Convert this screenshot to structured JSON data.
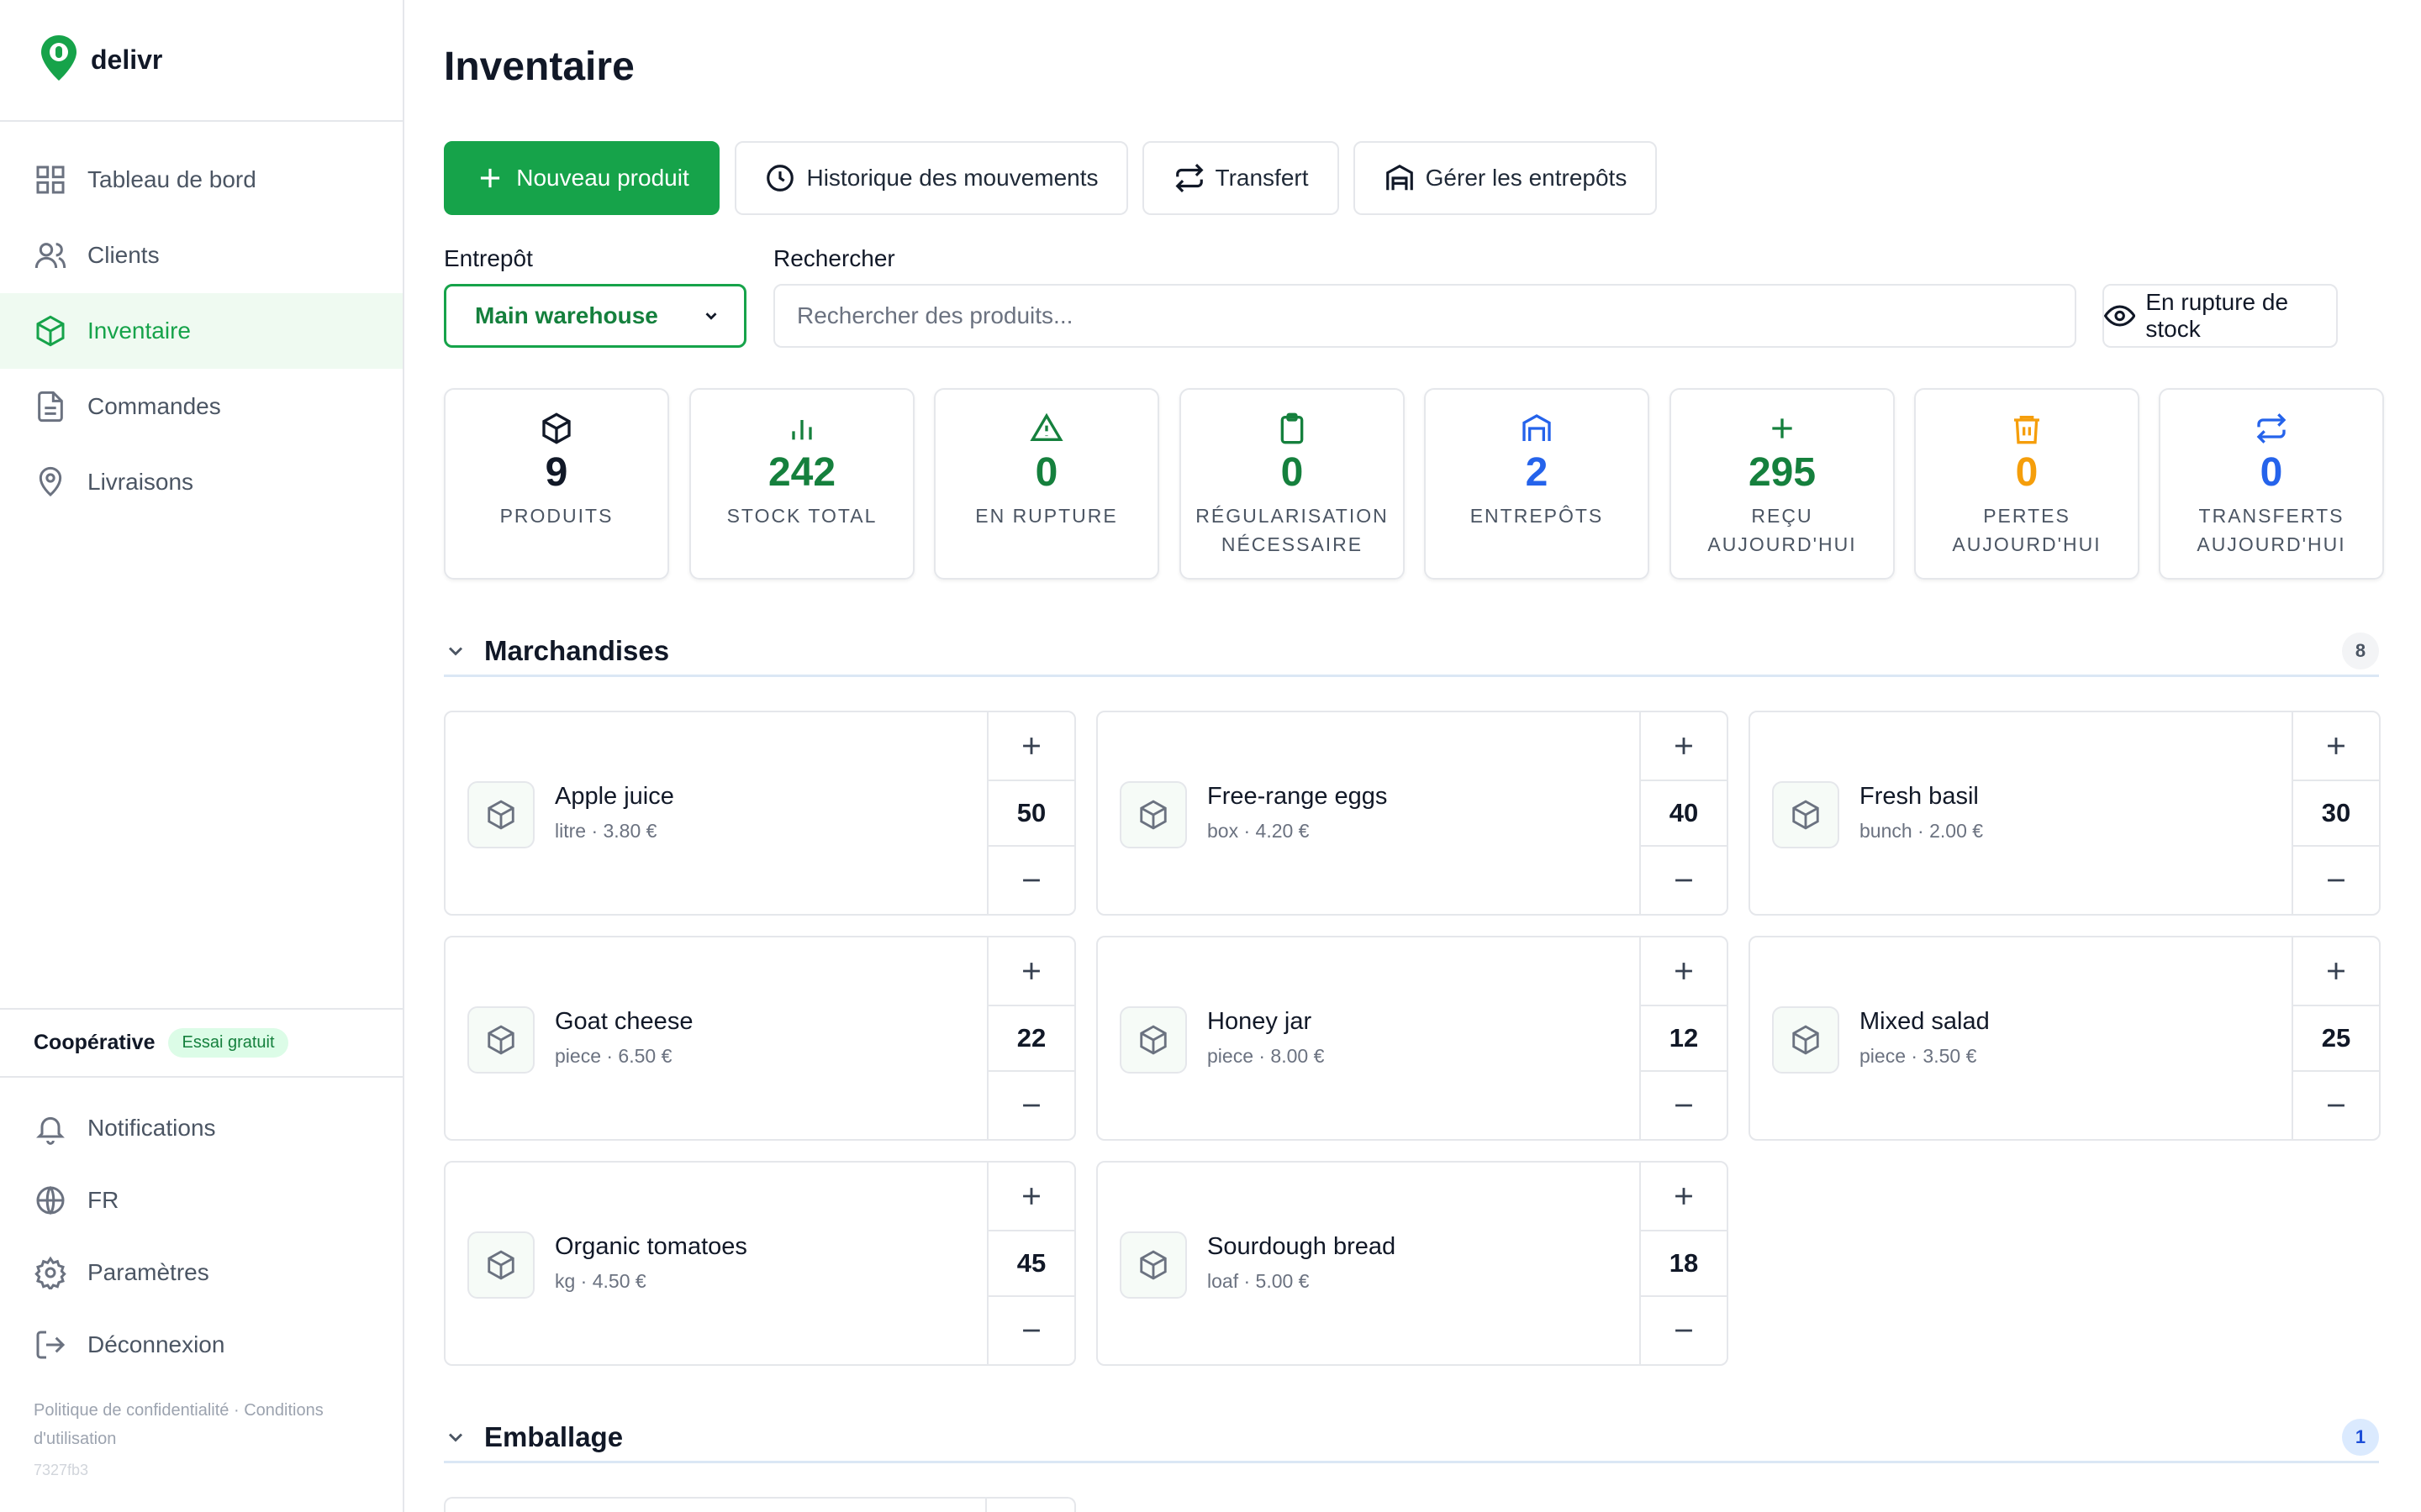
{
  "app": {
    "brand": "delivr"
  },
  "sidebar": {
    "items": [
      {
        "label": "Tableau de bord",
        "icon": "dashboard-icon"
      },
      {
        "label": "Clients",
        "icon": "users-icon"
      },
      {
        "label": "Inventaire",
        "icon": "box-icon",
        "active": true
      },
      {
        "label": "Commandes",
        "icon": "document-icon"
      },
      {
        "label": "Livraisons",
        "icon": "map-pin-icon"
      }
    ],
    "org": {
      "name": "Coopérative",
      "badge": "Essai gratuit"
    },
    "bottom": [
      {
        "label": "Notifications",
        "icon": "bell-icon"
      },
      {
        "label": "FR",
        "icon": "globe-icon"
      },
      {
        "label": "Paramètres",
        "icon": "gear-icon"
      },
      {
        "label": "Déconnexion",
        "icon": "logout-icon"
      }
    ],
    "legal": {
      "privacy": "Politique de confidentialité",
      "separator": "·",
      "terms": "Conditions d'utilisation"
    },
    "version": "7327fb3"
  },
  "main": {
    "title": "Inventaire",
    "actions": {
      "new_product": "Nouveau produit",
      "history": "Historique des mouvements",
      "transfer": "Transfert",
      "warehouses": "Gérer les entrepôts"
    },
    "filters": {
      "warehouse_label": "Entrepôt",
      "warehouse_value": "Main warehouse",
      "search_label": "Rechercher",
      "search_placeholder": "Rechercher des produits...",
      "out_of_stock": "En rupture de stock"
    },
    "stats": [
      {
        "value": "9",
        "label": "PRODUITS",
        "color": "#111827",
        "icon": "box-icon"
      },
      {
        "value": "242",
        "label": "STOCK TOTAL",
        "color": "#15803d",
        "icon": "bar-chart-icon"
      },
      {
        "value": "0",
        "label": "EN RUPTURE",
        "color": "#15803d",
        "icon": "warning-icon"
      },
      {
        "value": "0",
        "label": "RÉGULARISATION NÉCESSAIRE",
        "color": "#15803d",
        "icon": "clipboard-icon"
      },
      {
        "value": "2",
        "label": "ENTREPÔTS",
        "color": "#2563eb",
        "icon": "warehouse-icon"
      },
      {
        "value": "295",
        "label": "REÇU AUJOURD'HUI",
        "color": "#15803d",
        "icon": "plus-icon"
      },
      {
        "value": "0",
        "label": "PERTES AUJOURD'HUI",
        "color": "#f59e0b",
        "icon": "trash-icon"
      },
      {
        "value": "0",
        "label": "TRANSFERTS AUJOURD'HUI",
        "color": "#2563eb",
        "icon": "transfer-icon"
      }
    ],
    "sections": [
      {
        "title": "Marchandises",
        "count": "8",
        "products": [
          {
            "name": "Apple juice",
            "meta": "litre · 3.80 €",
            "qty": "50"
          },
          {
            "name": "Free-range eggs",
            "meta": "box · 4.20 €",
            "qty": "40"
          },
          {
            "name": "Fresh basil",
            "meta": "bunch · 2.00 €",
            "qty": "30"
          },
          {
            "name": "Goat cheese",
            "meta": "piece · 6.50 €",
            "qty": "22"
          },
          {
            "name": "Honey jar",
            "meta": "piece · 8.00 €",
            "qty": "12"
          },
          {
            "name": "Mixed salad",
            "meta": "piece · 3.50 €",
            "qty": "25"
          },
          {
            "name": "Organic tomatoes",
            "meta": "kg · 4.50 €",
            "qty": "45"
          },
          {
            "name": "Sourdough bread",
            "meta": "loaf · 5.00 €",
            "qty": "18"
          }
        ]
      },
      {
        "title": "Emballage",
        "count": "1"
      }
    ]
  }
}
